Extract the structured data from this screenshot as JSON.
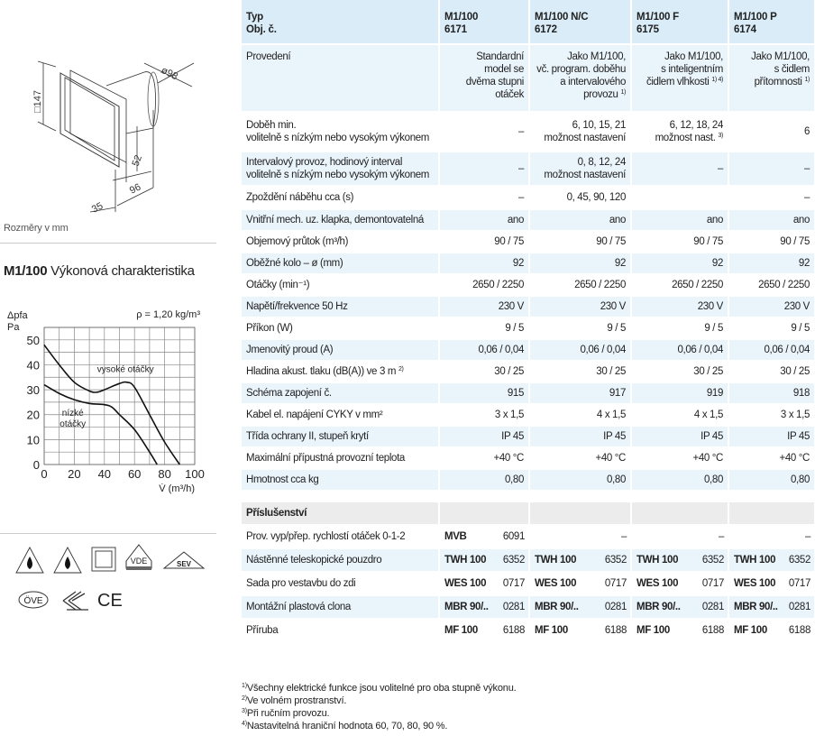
{
  "drawing": {
    "dims": [
      "□147",
      "ø98",
      "52",
      "96",
      "35"
    ],
    "caption": "Rozměry v mm"
  },
  "chart_title": {
    "bold": "M1/100",
    "rest": " Výkonová charakteristika"
  },
  "chart_data": {
    "type": "line",
    "ylabel_top": "Δpfa",
    "ylabel_unit": "Pa",
    "xlabel": "V̇ (m³/h)",
    "annotation": "ρ = 1,20 kg/m³",
    "xlim": [
      0,
      100
    ],
    "ylim": [
      0,
      55
    ],
    "xticks": [
      0,
      20,
      40,
      60,
      80,
      100
    ],
    "yticks": [
      0,
      10,
      20,
      30,
      40,
      50
    ],
    "grid": true,
    "series": [
      {
        "name": "vysoké otáčky",
        "x": [
          0,
          10,
          20,
          30,
          35,
          40,
          50,
          55,
          60,
          70,
          80,
          90
        ],
        "y": [
          48,
          40,
          33,
          29.5,
          29,
          30,
          32.5,
          33,
          31,
          20,
          9,
          0
        ]
      },
      {
        "name": "nízké\notáčky",
        "x": [
          0,
          10,
          20,
          30,
          40,
          45,
          50,
          60,
          70,
          75
        ],
        "y": [
          32,
          28.5,
          26,
          24.5,
          24,
          23,
          20,
          14,
          5,
          0
        ]
      }
    ]
  },
  "certifications": [
    {
      "icon": "drip-proof-icon"
    },
    {
      "icon": "drip-proof-icon"
    },
    {
      "icon": "protection-class-ii-icon"
    },
    {
      "icon": "vde-icon",
      "text": "VDE"
    },
    {
      "icon": "sev-icon",
      "text": "SEV"
    },
    {
      "icon": "ove-icon",
      "text": "ÖVE"
    },
    {
      "icon": "emc-icon"
    },
    {
      "icon": "ce-mark-icon",
      "text": "CE"
    }
  ],
  "table": {
    "header": {
      "label": "Typ\nObj. č.",
      "columns": [
        "M1/100\n6171",
        "M1/100 N/C\n6172",
        "M1/100 F\n6175",
        "M1/100  P\n6174"
      ]
    },
    "rows": [
      {
        "label": "Provedení",
        "cells": [
          {
            "t": "Standardní\nmodel se\ndvěma stupni\notáček"
          },
          {
            "t": "Jako M1/100,\nvč. program. doběhu\na intervalového\nprovozu",
            "n": "1)"
          },
          {
            "t": "Jako M1/100,\ns inteligentním\nčidlem vlhkosti",
            "n": "1) 4)"
          },
          {
            "t": "Jako M1/100,\ns čidlem\npřítomnosti",
            "n": "1)"
          }
        ]
      },
      {
        "label": "Doběh min.\nvolitelně s nízkým nebo vysokým výkonem",
        "cells": [
          {
            "t": "–"
          },
          {
            "t": "6, 10, 15, 21\nmožnost nastavení"
          },
          {
            "t": "6, 12, 18, 24\nmožnost nast.",
            "n": "3)"
          },
          {
            "t": "6"
          }
        ]
      },
      {
        "label": "Intervalový provoz, hodinový interval\nvolitelně s nízkým nebo vysokým výkonem",
        "cells": [
          {
            "t": "–"
          },
          {
            "t": "0, 8, 12, 24\nmožnost nastavení"
          },
          {
            "t": "–"
          },
          {
            "t": "–"
          }
        ]
      },
      {
        "label": "Zpoždění náběhu cca (s)",
        "cells": [
          {
            "t": "–"
          },
          {
            "t": "0, 45, 90, 120"
          },
          {
            "t": ""
          },
          {
            "t": "–"
          }
        ]
      },
      {
        "label": "Vnitřní mech. uz. klapka, demontovatelná",
        "cells": [
          {
            "t": "ano"
          },
          {
            "t": "ano"
          },
          {
            "t": "ano"
          },
          {
            "t": "ano"
          }
        ]
      },
      {
        "label": "Objemový průtok (m³/h)",
        "cells": [
          {
            "t": "90 / 75"
          },
          {
            "t": "90 / 75"
          },
          {
            "t": "90 / 75"
          },
          {
            "t": "90 / 75"
          }
        ]
      },
      {
        "label": "Oběžné kolo – ø (mm)",
        "cells": [
          {
            "t": "92"
          },
          {
            "t": "92"
          },
          {
            "t": "92"
          },
          {
            "t": "92"
          }
        ]
      },
      {
        "label": "Otáčky (min⁻¹)",
        "cells": [
          {
            "t": "2650 / 2250"
          },
          {
            "t": "2650 / 2250"
          },
          {
            "t": "2650 / 2250"
          },
          {
            "t": "2650 / 2250"
          }
        ]
      },
      {
        "label": "Napětí/frekvence 50 Hz",
        "cells": [
          {
            "t": "230 V"
          },
          {
            "t": "230 V"
          },
          {
            "t": "230 V"
          },
          {
            "t": "230 V"
          }
        ]
      },
      {
        "label": "Příkon (W)",
        "cells": [
          {
            "t": "9 / 5"
          },
          {
            "t": "9 / 5"
          },
          {
            "t": "9 / 5"
          },
          {
            "t": "9 / 5"
          }
        ]
      },
      {
        "label": "Jmenovitý proud (A)",
        "cells": [
          {
            "t": "0,06 / 0,04"
          },
          {
            "t": "0,06 / 0,04"
          },
          {
            "t": "0,06 / 0,04"
          },
          {
            "t": "0,06 / 0,04"
          }
        ]
      },
      {
        "label": "Hladina akust. tlaku (dB(A)) ve 3 m",
        "note": "2)",
        "cells": [
          {
            "t": "30 / 25"
          },
          {
            "t": "30 / 25"
          },
          {
            "t": "30 / 25"
          },
          {
            "t": "30 / 25"
          }
        ]
      },
      {
        "label": "Schéma zapojení č.",
        "cells": [
          {
            "t": "915"
          },
          {
            "t": "917"
          },
          {
            "t": "919"
          },
          {
            "t": "918"
          }
        ]
      },
      {
        "label": "Kabel el. napájení CYKY v mm²",
        "cells": [
          {
            "t": "3 x 1,5"
          },
          {
            "t": "4 x 1,5"
          },
          {
            "t": "4 x 1,5"
          },
          {
            "t": "3 x 1,5"
          }
        ]
      },
      {
        "label": "Třída ochrany II, stupeň krytí",
        "cells": [
          {
            "t": "IP 45"
          },
          {
            "t": "IP 45"
          },
          {
            "t": "IP 45"
          },
          {
            "t": "IP 45"
          }
        ]
      },
      {
        "label": "Maximální přípustná provozní teplota",
        "cells": [
          {
            "t": "+40 °C"
          },
          {
            "t": "+40 °C"
          },
          {
            "t": "+40 °C"
          },
          {
            "t": "+40 °C"
          }
        ]
      },
      {
        "label": "Hmotnost cca kg",
        "cells": [
          {
            "t": "0,80"
          },
          {
            "t": "0,80"
          },
          {
            "t": "0,80"
          },
          {
            "t": "0,80"
          }
        ]
      }
    ],
    "accessories_title": "Příslušenství",
    "accessories": [
      {
        "label": "Prov. vyp/přep. rychlostí otáček 0-1-2",
        "cells": [
          [
            "MVB",
            "6091"
          ],
          [
            "",
            "–"
          ],
          [
            "",
            "–"
          ],
          [
            "",
            "–"
          ]
        ]
      },
      {
        "label": "Nástěnné teleskopické pouzdro",
        "cells": [
          [
            "TWH 100",
            "6352"
          ],
          [
            "TWH 100",
            "6352"
          ],
          [
            "TWH 100",
            "6352"
          ],
          [
            "TWH 100",
            "6352"
          ]
        ]
      },
      {
        "label": "Sada pro vestavbu do zdi",
        "cells": [
          [
            "WES 100",
            "0717"
          ],
          [
            "WES 100",
            "0717"
          ],
          [
            "WES 100",
            "0717"
          ],
          [
            "WES 100",
            "0717"
          ]
        ]
      },
      {
        "label": "Montážní plastová clona",
        "cells": [
          [
            "MBR 90/..",
            "0281"
          ],
          [
            "MBR 90/..",
            "0281"
          ],
          [
            "MBR 90/..",
            "0281"
          ],
          [
            "MBR 90/..",
            "0281"
          ]
        ]
      },
      {
        "label": "Příruba",
        "cells": [
          [
            "MF 100",
            "6188"
          ],
          [
            "MF 100",
            "6188"
          ],
          [
            "MF 100",
            "6188"
          ],
          [
            "MF 100",
            "6188"
          ]
        ]
      }
    ]
  },
  "footnotes": [
    {
      "n": "1)",
      "t": "Všechny elektrické funkce jsou volitelné pro oba stupně výkonu."
    },
    {
      "n": "2)",
      "t": "Ve volném prostranství."
    },
    {
      "n": "3)",
      "t": "Při ručním provozu."
    },
    {
      "n": "4)",
      "t": "Nastavitelná hraniční hodnota 60, 70, 80, 90 %."
    }
  ]
}
